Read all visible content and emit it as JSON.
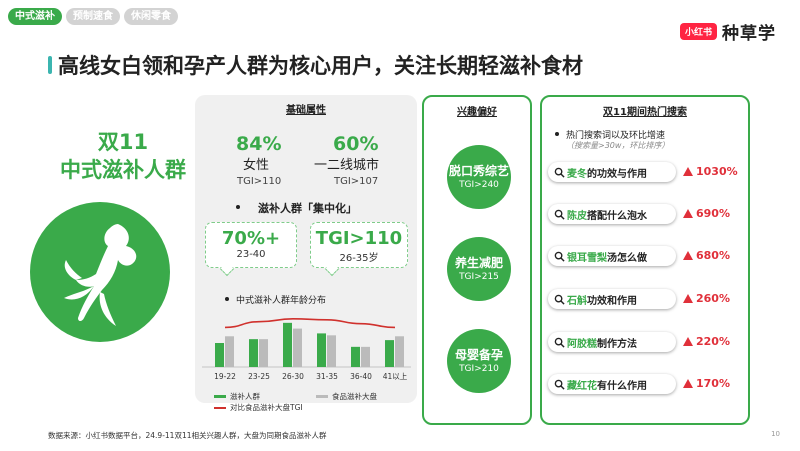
{
  "tabs": [
    {
      "label": "中式滋补",
      "active": true
    },
    {
      "label": "预制速食",
      "active": false
    },
    {
      "label": "休闲零食",
      "active": false
    }
  ],
  "brand": {
    "logo": "小红书",
    "name": "种草学"
  },
  "headline": "高线女白领和孕产人群为核心用户，关注长期轻滋补食材",
  "left": {
    "line1": "双11",
    "line2": "中式滋补人群",
    "icon": "ginseng-icon"
  },
  "basic": {
    "title": "基础属性",
    "stats": [
      {
        "value": "84%",
        "label": "女性",
        "tgi": "TGI>110"
      },
      {
        "value": "60%",
        "label": "一二线城市",
        "tgi": "TGI>107"
      }
    ],
    "concentration_title": "滋补人群「集中化」",
    "bubbles": [
      {
        "big": "70%+",
        "small": "23-40"
      },
      {
        "big": "TGI>110",
        "small": "26-35岁"
      }
    ],
    "chart_title": "中式滋补人群年龄分布"
  },
  "chart_data": {
    "type": "bar",
    "categories": [
      "19-22",
      "23-25",
      "26-30",
      "31-35",
      "36-40",
      "41以上"
    ],
    "series": [
      {
        "name": "滋补人群",
        "values": [
          0.5,
          0.58,
          0.92,
          0.7,
          0.42,
          0.56
        ],
        "color": "#3aaa4a"
      },
      {
        "name": "食品滋补大盘",
        "values": [
          0.64,
          0.58,
          0.8,
          0.66,
          0.42,
          0.64
        ],
        "color": "#bbbbbb"
      }
    ],
    "line": {
      "name": "对比食品滋补大盘TGI",
      "values": [
        0.74,
        0.86,
        0.92,
        0.9,
        0.82,
        0.74
      ],
      "color": "#d0312d"
    }
  },
  "interest": {
    "title": "兴趣偏好",
    "items": [
      {
        "title": "脱口秀综艺",
        "tgi": "TGI>240"
      },
      {
        "title": "养生减肥",
        "tgi": "TGI>215"
      },
      {
        "title": "母婴备孕",
        "tgi": "TGI>210"
      }
    ]
  },
  "search": {
    "title": "双11期间热门搜索",
    "subtitle": "热门搜索词以及环比增速",
    "note": "（搜索量>30w，环比排序）",
    "items": [
      {
        "keyword": "麦冬",
        "rest": "的功效与作用",
        "growth": "1030%"
      },
      {
        "keyword": "陈皮",
        "rest": "搭配什么泡水",
        "growth": "690%"
      },
      {
        "keyword": "银耳雪梨",
        "rest": "汤怎么做",
        "growth": "680%"
      },
      {
        "keyword": "石斛",
        "rest": "功效和作用",
        "growth": "260%"
      },
      {
        "keyword": "阿胶糕",
        "rest": "制作方法",
        "growth": "220%"
      },
      {
        "keyword": "藏红花",
        "rest": "有什么作用",
        "growth": "170%"
      }
    ]
  },
  "footer": "数据来源：小红书数据平台，24.9-11双11相关兴趣人群，大盘为同期食品滋补人群",
  "page_number": "10"
}
